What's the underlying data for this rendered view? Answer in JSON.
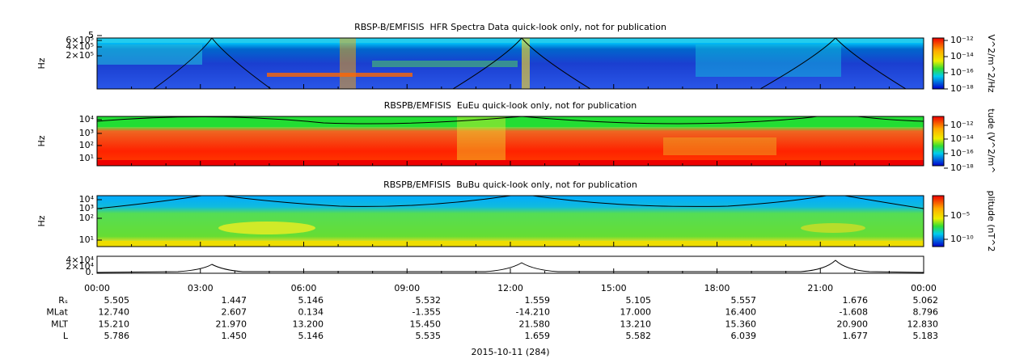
{
  "panels": [
    {
      "title": "RBSP-B/EMFISIS  HFR Spectra Data quick-look only, not for publication",
      "ylabel": "Hz",
      "yticks": [
        "5",
        "6×10⁵",
        "4×10⁵",
        "2×10⁵"
      ],
      "colorbar_label": "V^2/m^2/Hz",
      "colorbar_ticks": [
        "10⁻¹²",
        "10⁻¹⁴",
        "10⁻¹⁶",
        "10⁻¹⁸"
      ]
    },
    {
      "title": "RBSPB/EMFISIS  EuEu quick-look only, not for publication",
      "ylabel": "Hz",
      "yticks": [
        "10⁴",
        "10³",
        "10²",
        "10¹"
      ],
      "colorbar_label": "tude (V^2/m^",
      "colorbar_ticks": [
        "10⁻¹²",
        "10⁻¹⁴",
        "10⁻¹⁶",
        "10⁻¹⁸"
      ]
    },
    {
      "title": "RBSPB/EMFISIS  BuBu quick-look only, not for publication",
      "ylabel": "Hz",
      "yticks": [
        "10⁴",
        "10³",
        "10²",
        "10¹"
      ],
      "colorbar_label": "plitude (nT^2",
      "colorbar_ticks": [
        "10⁻⁵",
        "10⁻¹⁰"
      ]
    }
  ],
  "line_panel": {
    "yticks": [
      "4×10⁴",
      "2×10⁴",
      "0."
    ]
  },
  "xticks": [
    "00:00",
    "03:00",
    "06:00",
    "09:00",
    "12:00",
    "15:00",
    "18:00",
    "21:00",
    "00:00"
  ],
  "ephemeris": [
    {
      "label": "Rₛ",
      "values": [
        "5.505",
        "1.447",
        "5.146",
        "5.532",
        "1.559",
        "5.105",
        "5.557",
        "1.676",
        "5.062"
      ]
    },
    {
      "label": "MLat",
      "values": [
        "12.740",
        "2.607",
        "0.134",
        "-1.355",
        "-14.210",
        "17.000",
        "16.400",
        "-1.608",
        "8.796"
      ]
    },
    {
      "label": "MLT",
      "values": [
        "15.210",
        "21.970",
        "13.200",
        "15.450",
        "21.580",
        "13.210",
        "15.360",
        "20.900",
        "12.830"
      ]
    },
    {
      "label": "L",
      "values": [
        "5.786",
        "1.450",
        "5.146",
        "5.535",
        "1.659",
        "5.582",
        "6.039",
        "1.677",
        "5.183"
      ]
    }
  ],
  "date": "2015-10-11 (284)"
}
